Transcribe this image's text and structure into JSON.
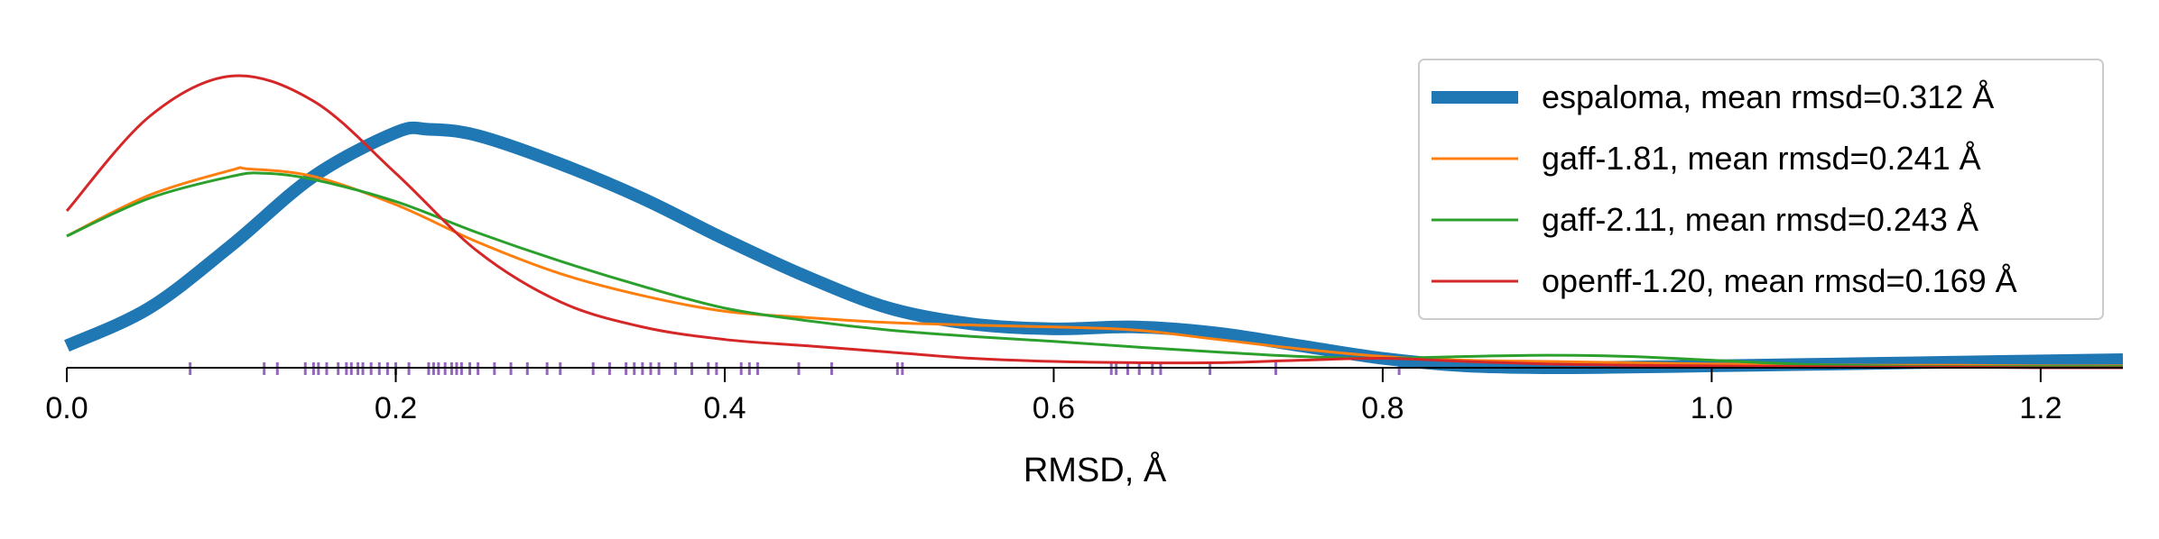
{
  "chart_data": {
    "type": "line",
    "title": "",
    "xlabel": "RMSD, Å",
    "ylabel": "",
    "xlim": [
      0.0,
      1.25
    ],
    "ylim": [
      0.0,
      5.0
    ],
    "grid": false,
    "legend_position": "top-right",
    "x_ticks": [
      "0.0",
      "0.2",
      "0.4",
      "0.6",
      "0.8",
      "1.0",
      "1.2"
    ],
    "x_tick_values": [
      0.0,
      0.2,
      0.4,
      0.6,
      0.8,
      1.0,
      1.2
    ],
    "series": [
      {
        "name": "espaloma, mean rmsd=0.312 Å",
        "color": "#1f77b4",
        "x": [
          0.0,
          0.05,
          0.1,
          0.15,
          0.2,
          0.22,
          0.25,
          0.3,
          0.35,
          0.4,
          0.45,
          0.5,
          0.55,
          0.6,
          0.65,
          0.7,
          0.75,
          0.8,
          0.85,
          0.9,
          0.95,
          1.0,
          1.05,
          1.1,
          1.15,
          1.2,
          1.25
        ],
        "y": [
          0.35,
          0.95,
          1.95,
          3.05,
          3.75,
          3.8,
          3.7,
          3.25,
          2.7,
          2.05,
          1.45,
          0.95,
          0.7,
          0.62,
          0.65,
          0.55,
          0.35,
          0.15,
          0.03,
          0.0,
          0.01,
          0.03,
          0.05,
          0.07,
          0.09,
          0.11,
          0.13
        ]
      },
      {
        "name": "gaff-1.81, mean rmsd=0.241 Å",
        "color": "#ff7f0e",
        "x": [
          0.0,
          0.05,
          0.1,
          0.11,
          0.15,
          0.2,
          0.25,
          0.3,
          0.35,
          0.4,
          0.45,
          0.5,
          0.55,
          0.6,
          0.65,
          0.7,
          0.75,
          0.8,
          0.85,
          0.9,
          0.95,
          1.0,
          1.05,
          1.1,
          1.15,
          1.2,
          1.25
        ],
        "y": [
          2.1,
          2.75,
          3.15,
          3.17,
          3.05,
          2.6,
          2.0,
          1.5,
          1.15,
          0.9,
          0.8,
          0.72,
          0.68,
          0.65,
          0.6,
          0.45,
          0.3,
          0.18,
          0.12,
          0.1,
          0.08,
          0.06,
          0.05,
          0.04,
          0.04,
          0.03,
          0.03
        ]
      },
      {
        "name": "gaff-2.11, mean rmsd=0.243 Å",
        "color": "#2ca02c",
        "x": [
          0.0,
          0.05,
          0.1,
          0.12,
          0.15,
          0.2,
          0.25,
          0.3,
          0.35,
          0.4,
          0.45,
          0.5,
          0.55,
          0.6,
          0.65,
          0.7,
          0.75,
          0.8,
          0.85,
          0.9,
          0.95,
          1.0,
          1.05,
          1.1,
          1.15,
          1.2,
          1.25
        ],
        "y": [
          2.1,
          2.7,
          3.05,
          3.1,
          3.0,
          2.65,
          2.15,
          1.7,
          1.3,
          0.95,
          0.75,
          0.6,
          0.5,
          0.42,
          0.33,
          0.25,
          0.18,
          0.15,
          0.18,
          0.2,
          0.18,
          0.12,
          0.06,
          0.03,
          0.02,
          0.02,
          0.02
        ]
      },
      {
        "name": "openff-1.20, mean rmsd=0.169 Å",
        "color": "#d62728",
        "x": [
          0.0,
          0.05,
          0.1,
          0.15,
          0.2,
          0.25,
          0.3,
          0.35,
          0.4,
          0.45,
          0.5,
          0.55,
          0.6,
          0.65,
          0.7,
          0.75,
          0.8,
          0.85,
          0.9,
          0.95,
          1.0,
          1.05,
          1.1,
          1.15,
          1.2,
          1.25
        ],
        "y": [
          2.5,
          4.0,
          4.65,
          4.25,
          3.1,
          1.85,
          1.05,
          0.65,
          0.45,
          0.35,
          0.25,
          0.15,
          0.1,
          0.08,
          0.08,
          0.12,
          0.15,
          0.1,
          0.06,
          0.04,
          0.03,
          0.02,
          0.01,
          0.01,
          0.0,
          0.0
        ]
      }
    ],
    "rug": {
      "color": "#9467bd",
      "values": [
        0.075,
        0.12,
        0.128,
        0.145,
        0.15,
        0.153,
        0.158,
        0.165,
        0.17,
        0.173,
        0.177,
        0.18,
        0.185,
        0.19,
        0.195,
        0.2,
        0.208,
        0.22,
        0.223,
        0.226,
        0.23,
        0.234,
        0.237,
        0.24,
        0.245,
        0.25,
        0.26,
        0.27,
        0.28,
        0.292,
        0.3,
        0.32,
        0.33,
        0.34,
        0.345,
        0.35,
        0.355,
        0.36,
        0.37,
        0.38,
        0.39,
        0.395,
        0.41,
        0.415,
        0.42,
        0.445,
        0.465,
        0.505,
        0.508,
        0.635,
        0.638,
        0.645,
        0.652,
        0.66,
        0.665,
        0.695,
        0.735,
        0.81
      ]
    }
  }
}
